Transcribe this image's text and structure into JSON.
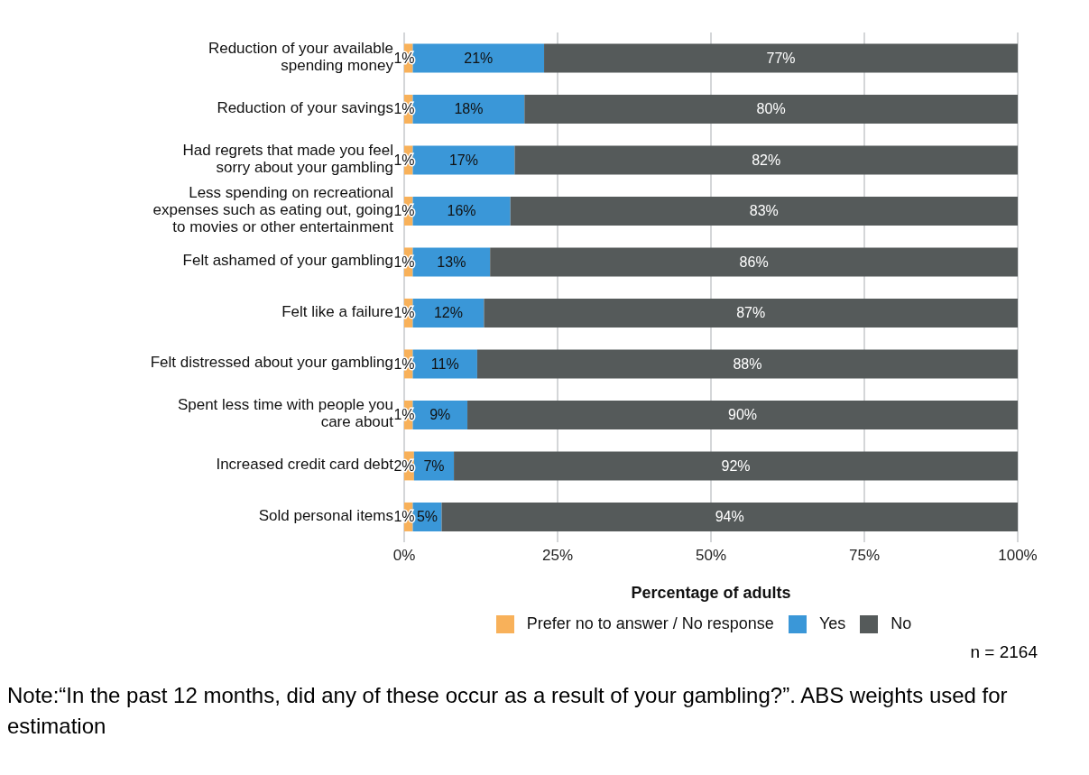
{
  "chart_data": {
    "type": "bar",
    "orientation": "horizontal",
    "stacked": true,
    "categories": [
      "Reduction of your available spending money",
      "Reduction of your savings",
      "Had regrets that made you feel sorry about your gambling",
      "Less spending on recreational expenses such as eating out, going to movies or other entertainment",
      "Felt ashamed of your gambling",
      "Felt like a failure",
      "Felt distressed about your gambling",
      "Spent less time with people you care about",
      "Increased credit card debt",
      "Sold personal items"
    ],
    "series": [
      {
        "name": "Prefer no to answer / No response",
        "color": "#f8b15a",
        "values": [
          1.4,
          1.4,
          1.4,
          1.4,
          1.4,
          1.4,
          1.4,
          1.4,
          1.6,
          1.4
        ],
        "value_labels": [
          "1%",
          "1%",
          "1%",
          "1%",
          "1%",
          "1%",
          "1%",
          "1%",
          "2%",
          "1%"
        ]
      },
      {
        "name": "Yes",
        "color": "#3a97d8",
        "values": [
          21.4,
          18.2,
          16.6,
          15.9,
          12.6,
          11.6,
          10.5,
          8.9,
          6.5,
          4.7
        ],
        "value_labels": [
          "21%",
          "18%",
          "17%",
          "16%",
          "13%",
          "12%",
          "11%",
          "9%",
          "7%",
          "5%"
        ]
      },
      {
        "name": "No",
        "color": "#555a5a",
        "values": [
          77.2,
          80.4,
          82.0,
          82.7,
          86.0,
          87.0,
          88.1,
          89.7,
          91.9,
          93.9
        ],
        "value_labels": [
          "77%",
          "80%",
          "82%",
          "83%",
          "86%",
          "87%",
          "88%",
          "90%",
          "92%",
          "94%"
        ]
      }
    ],
    "xlabel": "Percentage of adults",
    "xlim": [
      0,
      100
    ],
    "xticks": [
      {
        "value": 0,
        "label": "0%"
      },
      {
        "value": 25,
        "label": "25%"
      },
      {
        "value": 50,
        "label": "50%"
      },
      {
        "value": 75,
        "label": "75%"
      },
      {
        "value": 100,
        "label": "100%"
      }
    ],
    "grid": "x",
    "legend": "bottom",
    "annotations": [
      "n = 2164",
      "Note:“In the past 12 months, did any of these occur as a result of your gambling?”. ABS weights used for estimation"
    ]
  }
}
